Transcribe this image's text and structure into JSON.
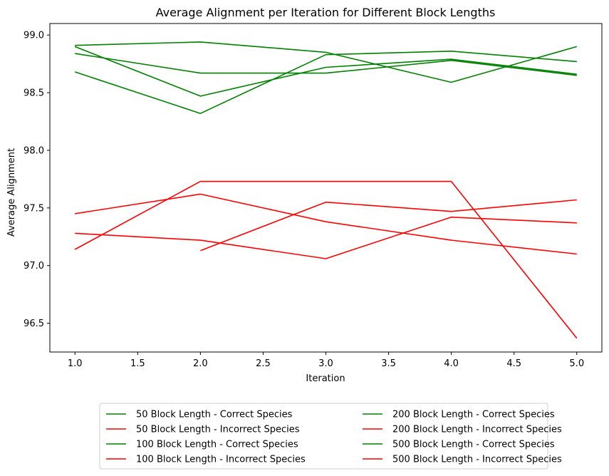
{
  "chart_data": {
    "type": "line",
    "title": "Average Alignment per Iteration for Different Block Lengths",
    "xlabel": "Iteration",
    "ylabel": "Average Alignment",
    "xlim": [
      0.8,
      5.2
    ],
    "ylim": [
      96.25,
      99.1
    ],
    "xticks": [
      "1.0",
      "1.5",
      "2.0",
      "2.5",
      "3.0",
      "3.5",
      "4.0",
      "4.5",
      "5.0"
    ],
    "yticks": [
      "96.5",
      "97.0",
      "97.5",
      "98.0",
      "98.5",
      "99.0"
    ],
    "grid": false,
    "legend_position": "bottom-center",
    "legend_columns": 2,
    "x": [
      1,
      2,
      3,
      4,
      5
    ],
    "colors": {
      "correct": "#008000",
      "incorrect": "#ff0000"
    },
    "series": [
      {
        "name": "50 Block Length - Correct Species",
        "color": "#008000",
        "x": [
          1,
          2,
          3,
          4,
          5
        ],
        "values": [
          98.91,
          98.94,
          98.85,
          98.59,
          98.9
        ]
      },
      {
        "name": "50 Block Length - Incorrect Species",
        "color": "#ff0000",
        "x": [
          1,
          2,
          3,
          4,
          5
        ],
        "values": [
          97.14,
          97.73,
          97.73,
          97.73,
          96.37
        ]
      },
      {
        "name": "100 Block Length - Correct Species",
        "color": "#008000",
        "x": [
          1,
          2,
          3,
          4,
          5
        ],
        "values": [
          98.68,
          98.32,
          98.83,
          98.86,
          98.77
        ]
      },
      {
        "name": "100 Block Length - Incorrect Species",
        "color": "#ff0000",
        "x": [
          1,
          2,
          3,
          4,
          5
        ],
        "values": [
          97.45,
          97.62,
          97.38,
          97.22,
          97.1
        ]
      },
      {
        "name": "200 Block Length - Correct Species",
        "color": "#008000",
        "x": [
          1,
          2,
          3,
          4,
          5
        ],
        "values": [
          98.84,
          98.67,
          98.67,
          98.78,
          98.65
        ]
      },
      {
        "name": "200 Block Length - Incorrect Species",
        "color": "#ff0000",
        "x": [
          2,
          3,
          4,
          5
        ],
        "values": [
          97.13,
          97.55,
          97.47,
          97.57
        ]
      },
      {
        "name": "500 Block Length - Correct Species",
        "color": "#008000",
        "x": [
          1,
          2,
          3,
          4,
          5
        ],
        "values": [
          98.9,
          98.47,
          98.72,
          98.79,
          98.66
        ]
      },
      {
        "name": "500 Block Length - Incorrect Species",
        "color": "#ff0000",
        "x": [
          1,
          2,
          3,
          4,
          5
        ],
        "values": [
          97.28,
          97.22,
          97.06,
          97.42,
          97.37
        ]
      }
    ]
  }
}
